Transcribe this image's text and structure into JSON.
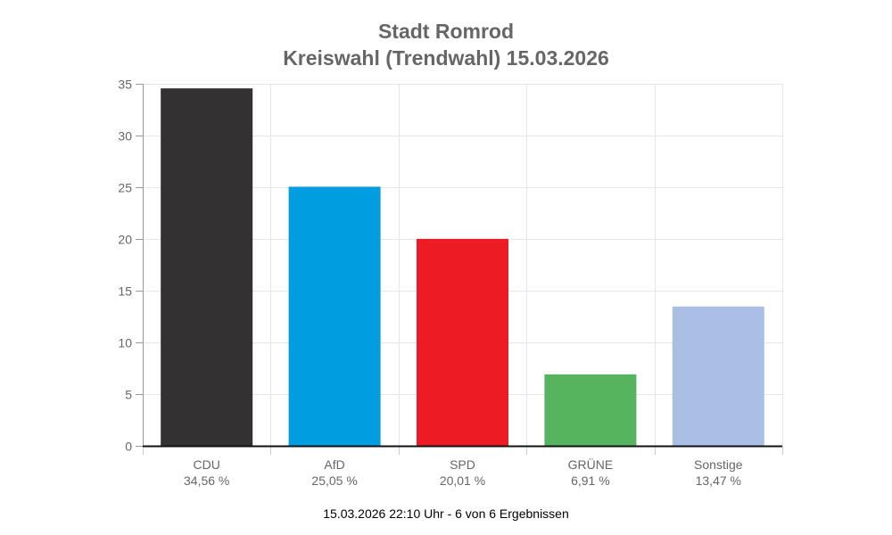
{
  "chart_data": {
    "type": "bar",
    "title": "Stadt Romrod",
    "subtitle": "Kreiswahl (Trendwahl) 15.03.2026",
    "categories": [
      "CDU",
      "AfD",
      "SPD",
      "GRÜNE",
      "Sonstige"
    ],
    "values": [
      34.56,
      25.05,
      20.01,
      6.91,
      13.47
    ],
    "value_labels": [
      "34,56 %",
      "25,05 %",
      "20,01 %",
      "6,91 %",
      "13,47 %"
    ],
    "colors": [
      "#333132",
      "#009ee0",
      "#ed1c24",
      "#56b45e",
      "#aabfe4"
    ],
    "ylim": [
      0,
      35
    ],
    "yticks": [
      "0",
      "5",
      "10",
      "15",
      "20",
      "25",
      "30",
      "35"
    ],
    "grid": true,
    "legend": "none"
  },
  "footer": "15.03.2026 22:10 Uhr - 6 von 6 Ergebnissen"
}
